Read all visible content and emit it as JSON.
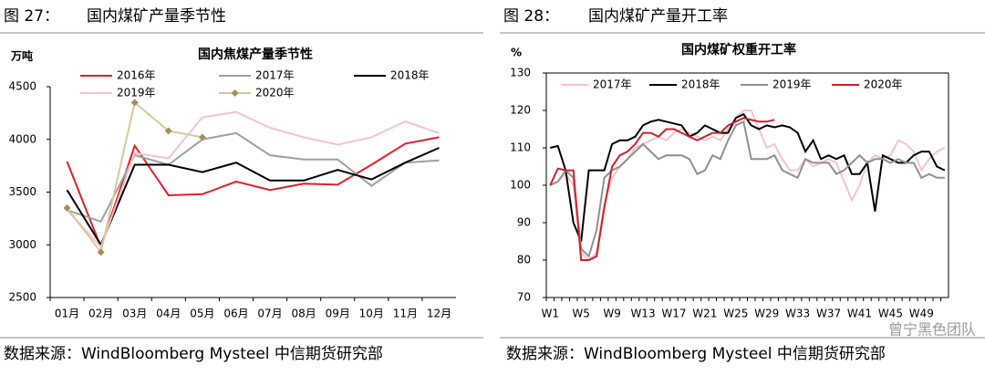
{
  "captions": [
    {
      "number": "图 27：",
      "title": "国内煤矿产量季节性",
      "source": "数据来源：WindBloomberg Mysteel 中信期货研究部"
    },
    {
      "number": "图 28：",
      "title": "国内煤矿产量开工率",
      "source": "数据来源：WindBloomberg Mysteel 中信期货研究部"
    }
  ],
  "watermark": "曾宁黑色团队",
  "chart_data": [
    {
      "type": "line",
      "title": "国内焦煤产量季节性",
      "ylabel": "万吨",
      "legend": "top",
      "categories": [
        "01月",
        "02月",
        "03月",
        "04月",
        "05月",
        "06月",
        "07月",
        "08月",
        "09月",
        "10月",
        "11月",
        "12月"
      ],
      "ylim": [
        2500,
        4500
      ],
      "yticks": [
        2500,
        3000,
        3500,
        4000,
        4500
      ],
      "grid": false,
      "series": [
        {
          "name": "2016年",
          "color": "#e0202a",
          "values": [
            3790,
            2980,
            3940,
            3470,
            3480,
            3600,
            3520,
            3580,
            3570,
            3760,
            3960,
            4020
          ]
        },
        {
          "name": "2017年",
          "color": "#a0a0a0",
          "values": [
            3330,
            3220,
            3850,
            3760,
            4000,
            4060,
            3850,
            3810,
            3810,
            3560,
            3780,
            3800
          ]
        },
        {
          "name": "2018年",
          "color": "#000000",
          "values": [
            3520,
            3000,
            3760,
            3760,
            3690,
            3780,
            3610,
            3610,
            3710,
            3620,
            3780,
            3920
          ]
        },
        {
          "name": "2019年",
          "color": "#f4c4c8",
          "values": [
            3330,
            2980,
            3870,
            3820,
            4210,
            4260,
            4110,
            4020,
            3950,
            4020,
            4170,
            4060
          ]
        },
        {
          "name": "2020年",
          "color": "#d8c8a0",
          "marker": "diamond",
          "marker_color": "#a09060",
          "values": [
            3350,
            2930,
            4350,
            4080,
            4020,
            null,
            null,
            null,
            null,
            null,
            null,
            null
          ]
        }
      ]
    },
    {
      "type": "line",
      "title": "国内煤矿权重开工率",
      "ylabel": "%",
      "legend": "top",
      "categories": [
        "W1",
        null,
        null,
        null,
        "W5",
        null,
        null,
        null,
        "W9",
        null,
        null,
        null,
        "W13",
        null,
        null,
        null,
        "W17",
        null,
        null,
        null,
        "W21",
        null,
        null,
        null,
        "W25",
        null,
        null,
        null,
        "W29",
        null,
        null,
        null,
        "W33",
        null,
        null,
        null,
        "W37",
        null,
        null,
        null,
        "W41",
        null,
        null,
        null,
        "W45",
        null,
        null,
        null,
        "W49",
        null,
        null,
        null
      ],
      "ylim": [
        70,
        130
      ],
      "yticks": [
        70,
        80,
        90,
        100,
        110,
        120,
        130
      ],
      "grid": false,
      "series": [
        {
          "name": "2017年",
          "color": "#f4c4c8",
          "values": [
            100,
            101,
            103,
            100,
            82,
            80,
            82,
            95,
            102,
            105,
            107,
            110,
            111,
            112,
            113,
            112,
            114,
            115,
            114,
            113,
            112,
            113,
            112,
            115,
            118,
            120,
            120,
            115,
            110,
            111,
            107,
            104,
            104,
            107,
            105,
            106,
            107,
            106,
            101,
            96,
            100,
            106,
            108,
            107,
            108,
            112,
            111,
            109,
            104,
            107,
            109,
            110
          ]
        },
        {
          "name": "2018年",
          "color": "#000000",
          "values": [
            110,
            110.5,
            104,
            90,
            85,
            104,
            104,
            104,
            111,
            112,
            112,
            113,
            116,
            117,
            117.5,
            117,
            116.5,
            116,
            113,
            114,
            116,
            115,
            114,
            114,
            118,
            119,
            116,
            115,
            116,
            115.5,
            116,
            115.5,
            114,
            109,
            112,
            107,
            108,
            107,
            108,
            103,
            103,
            106,
            93,
            108,
            107,
            106,
            106,
            108,
            109,
            109,
            105,
            104
          ]
        },
        {
          "name": "2019年",
          "color": "#909090",
          "values": [
            100,
            101,
            104,
            102,
            83,
            81,
            88,
            102,
            104,
            105,
            107,
            109,
            111,
            109,
            107,
            108,
            108,
            108,
            107,
            103,
            104,
            108,
            107,
            112,
            116,
            117,
            107,
            107,
            107,
            108,
            104,
            103,
            102,
            107,
            106,
            106,
            106,
            103,
            104,
            106,
            108,
            106,
            107,
            107,
            106,
            107,
            106,
            106,
            102,
            103,
            102,
            102
          ]
        },
        {
          "name": "2020年",
          "color": "#d0202a",
          "values": [
            100,
            104.5,
            104,
            104,
            80,
            80,
            81,
            94,
            105,
            108,
            109,
            111,
            114,
            114,
            113,
            115,
            115,
            114,
            113,
            112,
            113,
            114,
            114,
            116,
            117,
            118,
            117.5,
            117,
            117,
            117.5,
            null,
            null,
            null,
            null,
            null,
            null,
            null,
            null,
            null,
            null,
            null,
            null,
            null,
            null,
            null,
            null,
            null,
            null,
            null,
            null,
            null,
            null
          ]
        }
      ]
    }
  ]
}
